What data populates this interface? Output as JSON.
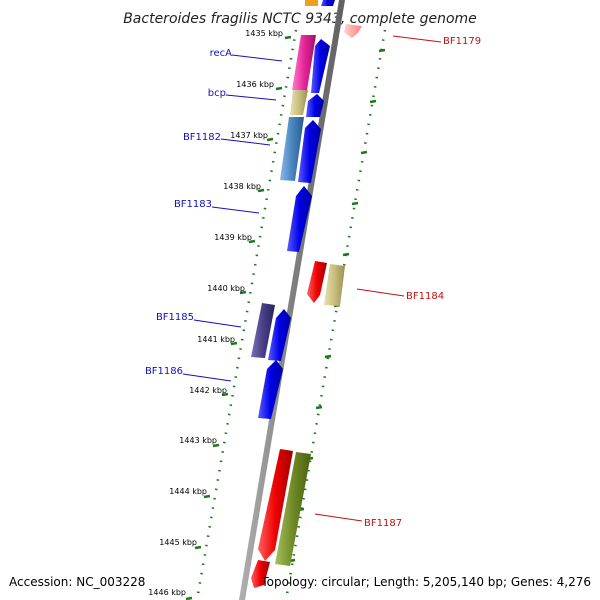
{
  "title": "Bacteroides fragilis NCTC 9343, complete genome",
  "footer": {
    "accession": "Accession: NC_003228",
    "topology": "Topology: circular; Length: 5,205,140 bp; Genes: 4,276"
  },
  "ticks": [
    "1435 kbp",
    "1436 kbp",
    "1437 kbp",
    "1438 kbp",
    "1439 kbp",
    "1440 kbp",
    "1441 kbp",
    "1442 kbp",
    "1443 kbp",
    "1444 kbp",
    "1445 kbp",
    "1446 kbp"
  ],
  "labels_left": [
    "recA",
    "bcp",
    "BF1182",
    "BF1183",
    "BF1185",
    "BF1186"
  ],
  "labels_right": [
    "BF1179",
    "BF1184",
    "BF1187"
  ],
  "colors": {
    "backbone": "#808080",
    "tick_ring": "#1a7a1a",
    "forward_cds": "#0000e6",
    "reverse_cds": "#ee0000",
    "recA": "#e6259a",
    "bcp": "#c8be7e",
    "BF1182": "#4a86c0",
    "BF1185": "#4a3f86",
    "BF1184_cog": "#c8be7e",
    "BF1187_cog": "#6f8a26",
    "label_left": "#1010c0",
    "label_right": "#c01010"
  }
}
